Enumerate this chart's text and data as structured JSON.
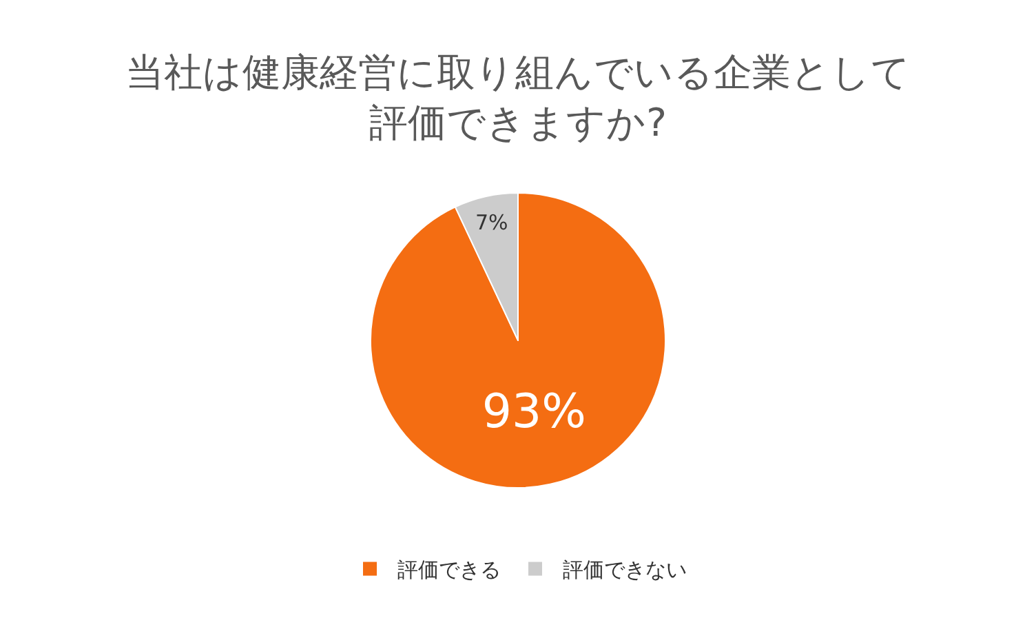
{
  "chart_data": {
    "type": "pie",
    "title": "当社は健康経営に取り組んでいる企業として評価できますか?",
    "categories": [
      "評価できる",
      "評価できない"
    ],
    "values": [
      93,
      7
    ],
    "colors": [
      "#f46d12",
      "#cccccc"
    ],
    "value_labels": [
      "93%",
      "7%"
    ],
    "legend": "bottom"
  }
}
